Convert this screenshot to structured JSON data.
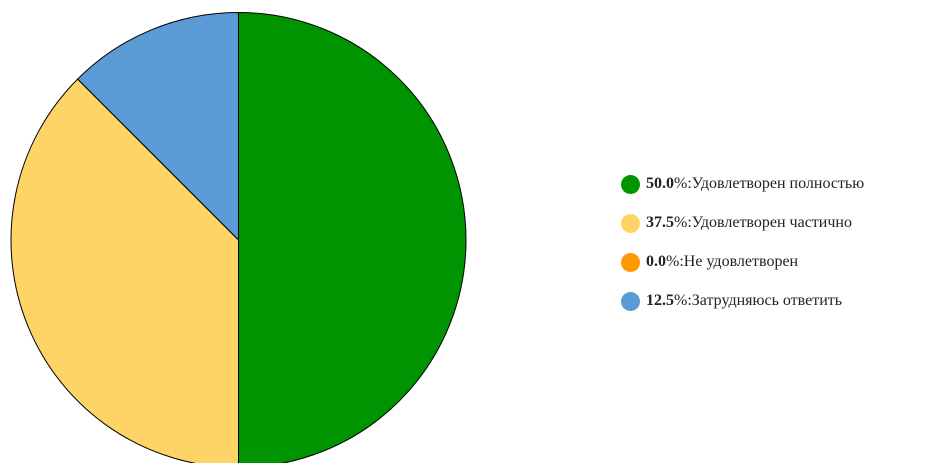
{
  "chart_data": {
    "type": "pie",
    "slices": [
      {
        "percent_label": "50.0",
        "label": "Удовлетворен полностью",
        "value": 50.0,
        "color": "#009400"
      },
      {
        "percent_label": "37.5",
        "label": "Удовлетворен частично",
        "value": 37.5,
        "color": "#ffd466"
      },
      {
        "percent_label": "0.0",
        "label": "Не удовлетворен",
        "value": 0.0,
        "color": "#ff9900"
      },
      {
        "percent_label": "12.5",
        "label": "Затрудняюсь ответить",
        "value": 12.5,
        "color": "#5b9bd5"
      }
    ],
    "legend_position": "right",
    "start_angle": "top, clockwise"
  }
}
